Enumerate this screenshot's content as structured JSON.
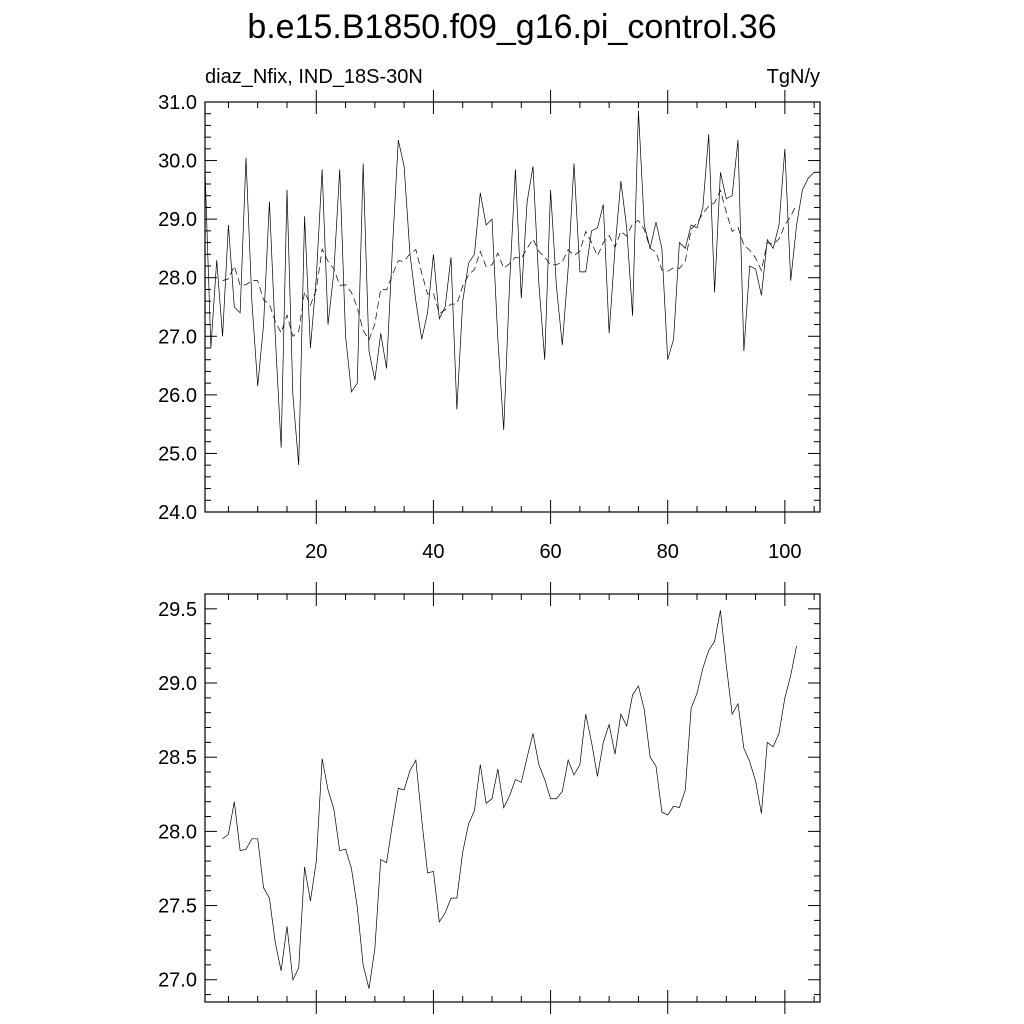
{
  "title": "b.e15.B1850.f09_g16.pi_control.36",
  "chart_data": [
    {
      "type": "line",
      "left_label": "diaz_Nfix, IND_18S-30N",
      "right_label": "TgN/y",
      "xlim": [
        1,
        106
      ],
      "ylim": [
        24.0,
        31.0
      ],
      "x_ticks": [
        20,
        40,
        60,
        80,
        100
      ],
      "y_ticks": [
        "24.0",
        "25.0",
        "26.0",
        "27.0",
        "28.0",
        "29.0",
        "30.0",
        "31.0"
      ],
      "x_start": 1,
      "series": [
        {
          "style": "solid",
          "values": [
            29.85,
            26.8,
            28.3,
            27.0,
            28.9,
            27.5,
            27.4,
            30.05,
            27.6,
            26.15,
            27.2,
            29.3,
            27.0,
            25.1,
            29.5,
            26.0,
            24.8,
            29.05,
            26.8,
            28.0,
            29.85,
            27.2,
            28.1,
            29.85,
            27.0,
            26.05,
            26.2,
            29.95,
            26.75,
            26.25,
            27.05,
            26.45,
            28.5,
            30.35,
            29.9,
            28.4,
            27.6,
            26.95,
            27.4,
            28.4,
            27.3,
            27.5,
            28.35,
            25.75,
            27.6,
            28.25,
            28.4,
            29.45,
            28.9,
            29.0,
            26.95,
            25.4,
            27.9,
            29.85,
            27.65,
            29.3,
            29.9,
            27.9,
            26.6,
            29.5,
            27.85,
            26.85,
            28.15,
            29.95,
            28.1,
            28.1,
            28.8,
            28.85,
            29.25,
            27.05,
            28.5,
            29.65,
            28.85,
            27.35,
            30.85,
            28.9,
            28.5,
            28.95,
            28.5,
            26.6,
            26.95,
            28.6,
            28.5,
            28.9,
            28.85,
            29.2,
            30.45,
            27.75,
            29.8,
            29.35,
            29.4,
            30.35,
            26.75,
            28.2,
            28.15,
            27.7,
            28.65,
            28.5,
            28.9,
            30.2,
            27.95,
            28.9,
            29.5,
            29.7,
            29.8
          ]
        },
        {
          "style": "dashed",
          "values": [
            null,
            null,
            null,
            27.95,
            27.98,
            28.2,
            27.87,
            27.88,
            27.95,
            27.95,
            27.62,
            27.55,
            27.25,
            27.06,
            27.36,
            27.0,
            27.08,
            27.76,
            27.53,
            27.8,
            28.49,
            28.28,
            28.15,
            27.87,
            27.88,
            27.75,
            27.49,
            27.1,
            26.94,
            27.21,
            27.81,
            27.79,
            28.05,
            28.29,
            28.28,
            28.41,
            28.48,
            28.08,
            27.72,
            27.73,
            27.39,
            27.45,
            27.55,
            27.55,
            27.86,
            28.05,
            28.14,
            28.45,
            28.19,
            28.22,
            28.42,
            28.16,
            28.24,
            28.35,
            28.33,
            28.5,
            28.66,
            28.45,
            28.35,
            28.22,
            28.22,
            28.27,
            28.48,
            28.38,
            28.45,
            28.79,
            28.6,
            28.37,
            28.6,
            28.72,
            28.52,
            28.79,
            28.71,
            28.92,
            28.98,
            28.82,
            28.5,
            28.44,
            28.13,
            28.11,
            28.17,
            28.16,
            28.28,
            28.83,
            28.93,
            29.1,
            29.22,
            29.28,
            29.49,
            29.12,
            28.79,
            28.86,
            28.56,
            28.47,
            28.34,
            28.12,
            28.6,
            28.57,
            28.66,
            28.9,
            29.05,
            29.25,
            null,
            null,
            null,
            null
          ]
        }
      ]
    },
    {
      "type": "line",
      "xlim": [
        1,
        106
      ],
      "ylim": [
        26.85,
        29.6
      ],
      "x_ticks": [
        20,
        40,
        60,
        80,
        100
      ],
      "y_ticks": [
        "27.0",
        "27.5",
        "28.0",
        "28.5",
        "29.0",
        "29.5"
      ],
      "x_start": 1,
      "series": [
        {
          "style": "solid",
          "values": [
            null,
            null,
            null,
            27.95,
            27.98,
            28.2,
            27.87,
            27.88,
            27.95,
            27.95,
            27.62,
            27.55,
            27.25,
            27.06,
            27.36,
            27.0,
            27.08,
            27.76,
            27.53,
            27.8,
            28.49,
            28.28,
            28.15,
            27.87,
            27.88,
            27.75,
            27.49,
            27.1,
            26.94,
            27.21,
            27.81,
            27.79,
            28.05,
            28.29,
            28.28,
            28.41,
            28.48,
            28.08,
            27.72,
            27.73,
            27.39,
            27.45,
            27.55,
            27.55,
            27.86,
            28.05,
            28.14,
            28.45,
            28.19,
            28.22,
            28.42,
            28.16,
            28.24,
            28.35,
            28.33,
            28.5,
            28.66,
            28.45,
            28.35,
            28.22,
            28.22,
            28.27,
            28.48,
            28.38,
            28.45,
            28.79,
            28.6,
            28.37,
            28.6,
            28.72,
            28.52,
            28.79,
            28.71,
            28.92,
            28.98,
            28.82,
            28.5,
            28.44,
            28.13,
            28.11,
            28.17,
            28.16,
            28.28,
            28.83,
            28.93,
            29.1,
            29.22,
            29.28,
            29.49,
            29.12,
            28.79,
            28.86,
            28.56,
            28.47,
            28.34,
            28.12,
            28.6,
            28.57,
            28.66,
            28.9,
            29.05,
            29.25,
            null,
            null,
            null,
            null
          ]
        }
      ]
    }
  ]
}
